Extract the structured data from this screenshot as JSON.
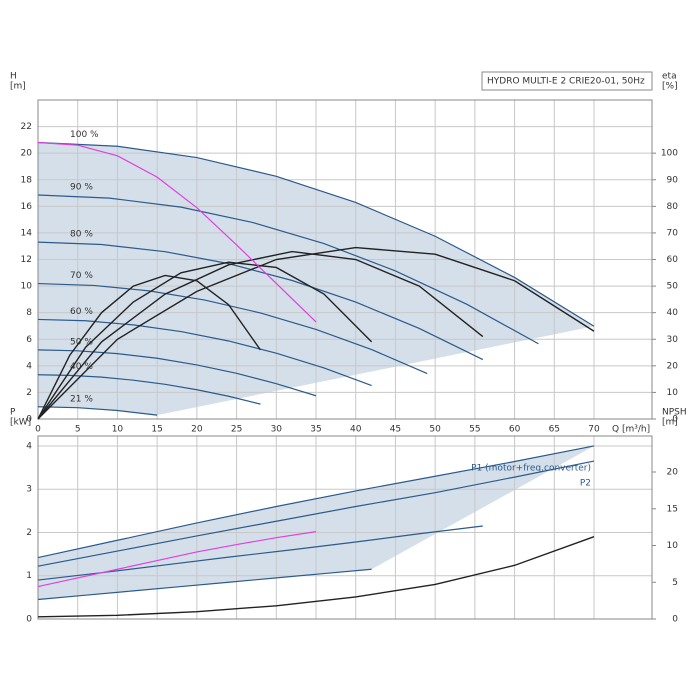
{
  "chart_data": [
    {
      "type": "line",
      "title": "HYDRO MULTI-E 2 CRIE20-01, 50Hz",
      "y_label": "H",
      "y_unit": "[m]",
      "y2_label": "eta",
      "y2_unit": "[%]",
      "x_label": "Q [m³/h]",
      "xlim": [
        0,
        77.3
      ],
      "xticks": [
        0,
        5,
        10,
        15,
        20,
        25,
        30,
        35,
        40,
        45,
        50,
        55,
        60,
        65,
        70
      ],
      "ylim": [
        0,
        24
      ],
      "yticks": [
        0,
        2,
        4,
        6,
        8,
        10,
        12,
        14,
        16,
        18,
        20,
        22
      ],
      "y2lim": [
        0,
        120
      ],
      "y2ticks": [
        0,
        10,
        20,
        30,
        40,
        50,
        60,
        70,
        80,
        90,
        100
      ],
      "grid": true,
      "series": [
        {
          "name": "100 %",
          "color": "#2b5a8c",
          "x": [
            0,
            10,
            20,
            30,
            40,
            50,
            60,
            70
          ],
          "values": [
            20.8,
            20.52,
            19.67,
            18.26,
            16.29,
            13.75,
            10.65,
            6.98
          ]
        },
        {
          "name": "90 %",
          "color": "#2b5a8c",
          "x": [
            0,
            9,
            18,
            27,
            36,
            45,
            54,
            63
          ],
          "values": [
            16.85,
            16.62,
            15.94,
            14.79,
            13.2,
            11.14,
            8.63,
            5.66
          ]
        },
        {
          "name": "80 %",
          "color": "#2b5a8c",
          "x": [
            0,
            8,
            16,
            24,
            32,
            40,
            48,
            56
          ],
          "values": [
            13.31,
            13.13,
            12.59,
            11.69,
            10.42,
            8.8,
            6.81,
            4.47
          ]
        },
        {
          "name": "70 %",
          "color": "#2b5a8c",
          "x": [
            0,
            7,
            14,
            21,
            28,
            35,
            42,
            49
          ],
          "values": [
            10.19,
            10.05,
            9.64,
            8.95,
            7.98,
            6.74,
            5.22,
            3.42
          ]
        },
        {
          "name": "60 %",
          "color": "#2b5a8c",
          "x": [
            0,
            6,
            12,
            18,
            24,
            30,
            36,
            42
          ],
          "values": [
            7.49,
            7.39,
            7.08,
            6.58,
            5.87,
            4.95,
            3.84,
            2.52
          ]
        },
        {
          "name": "50 %",
          "color": "#2b5a8c",
          "x": [
            0,
            5,
            10,
            15,
            20,
            25,
            30,
            35
          ],
          "values": [
            5.2,
            5.13,
            4.92,
            4.57,
            4.07,
            3.44,
            2.66,
            1.75
          ]
        },
        {
          "name": "40 %",
          "color": "#2b5a8c",
          "x": [
            0,
            4,
            8,
            12,
            16,
            20,
            24,
            28
          ],
          "values": [
            3.33,
            3.28,
            3.15,
            2.92,
            2.61,
            2.2,
            1.71,
            1.12
          ]
        },
        {
          "name": "21 %",
          "color": "#2b5a8c",
          "x": [
            0,
            5,
            10,
            15
          ],
          "values": [
            0.92,
            0.85,
            0.64,
            0.29
          ]
        },
        {
          "color": "#222222",
          "axis": "y2",
          "x": [
            0,
            10,
            20,
            30,
            40,
            50,
            60,
            70
          ],
          "values": [
            0,
            30,
            48,
            60,
            64.5,
            62,
            52,
            33
          ]
        },
        {
          "color": "#222222",
          "axis": "y2",
          "x": [
            0,
            8,
            16,
            24,
            32,
            40,
            48,
            56
          ],
          "values": [
            0,
            29,
            47,
            58,
            63,
            60,
            50,
            31
          ]
        },
        {
          "color": "#222222",
          "axis": "y2",
          "x": [
            0,
            6,
            12,
            18,
            24,
            30,
            36,
            42
          ],
          "values": [
            0,
            27,
            44,
            55,
            59,
            57,
            47,
            29
          ]
        },
        {
          "color": "#222222",
          "axis": "y2",
          "x": [
            0,
            4,
            8,
            12,
            16,
            20,
            24,
            28
          ],
          "values": [
            0,
            24,
            40,
            50,
            54,
            52,
            43,
            26
          ]
        },
        {
          "color": "#e040e0",
          "x": [
            0,
            5,
            10,
            15,
            20,
            25,
            30,
            35
          ],
          "values": [
            20.8,
            20.6,
            19.8,
            18.2,
            15.9,
            13.1,
            10.2,
            7.3
          ]
        }
      ]
    },
    {
      "type": "line",
      "y_label": "P",
      "y_unit": "[kW]",
      "y2_label": "NPSH",
      "y2_unit": "[m]",
      "xlim": [
        0,
        77.3
      ],
      "xticks": [
        0,
        5,
        10,
        15,
        20,
        25,
        30,
        35,
        40,
        45,
        50,
        55,
        60,
        65,
        70
      ],
      "ylim": [
        0,
        4.23
      ],
      "yticks": [
        0,
        1,
        2,
        3,
        4
      ],
      "y2lim": [
        0,
        24.9
      ],
      "y2ticks": [
        0,
        5,
        10,
        15,
        20
      ],
      "grid": true,
      "series": [
        {
          "name": "P1 (motor+freq.converter)",
          "color": "#2b5a8c",
          "x": [
            0,
            10,
            20,
            30,
            40,
            50,
            60,
            70
          ],
          "values": [
            1.42,
            1.82,
            2.22,
            2.6,
            2.96,
            3.3,
            3.64,
            4.0
          ]
        },
        {
          "name": "P2",
          "color": "#2b5a8c",
          "x": [
            0,
            10,
            20,
            30,
            40,
            50,
            60,
            70
          ],
          "values": [
            1.22,
            1.57,
            1.92,
            2.26,
            2.6,
            2.92,
            3.28,
            3.65
          ]
        },
        {
          "color": "#2b5a8c",
          "x": [
            0,
            8,
            16,
            24,
            32,
            40,
            48,
            56
          ],
          "values": [
            0.9,
            1.07,
            1.25,
            1.43,
            1.6,
            1.78,
            1.97,
            2.15
          ]
        },
        {
          "color": "#2b5a8c",
          "x": [
            0,
            6,
            12,
            18,
            24,
            30,
            36,
            42
          ],
          "values": [
            0.45,
            0.55,
            0.65,
            0.75,
            0.85,
            0.95,
            1.05,
            1.15
          ]
        },
        {
          "color": "#222222",
          "axis": "y2",
          "x": [
            0,
            10,
            20,
            30,
            40,
            50,
            60,
            70
          ],
          "values": [
            0.3,
            0.5,
            1.0,
            1.8,
            3.0,
            4.7,
            7.3,
            11.2
          ]
        },
        {
          "color": "#e040e0",
          "x": [
            0,
            5,
            10,
            15,
            20,
            25,
            30,
            35
          ],
          "values": [
            0.75,
            0.95,
            1.15,
            1.35,
            1.55,
            1.72,
            1.88,
            2.02
          ]
        }
      ]
    }
  ]
}
